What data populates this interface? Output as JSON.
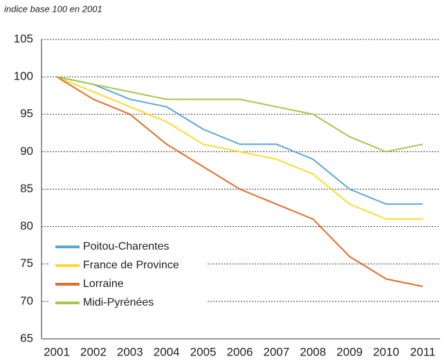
{
  "chart_data": {
    "type": "line",
    "subtitle": "indice base 100 en 2001",
    "categories": [
      "2001",
      "2002",
      "2003",
      "2004",
      "2005",
      "2006",
      "2007",
      "2008",
      "2009",
      "2010",
      "2011"
    ],
    "series": [
      {
        "name": "Poitou-Charentes",
        "color": "#5aa6dc",
        "values": [
          100,
          99,
          97,
          96,
          93,
          91,
          91,
          89,
          85,
          83,
          83
        ]
      },
      {
        "name": "France de Province",
        "color": "#ffd92f",
        "values": [
          100,
          98,
          96,
          94,
          91,
          90,
          89,
          87,
          83,
          81,
          81
        ]
      },
      {
        "name": "Lorraine",
        "color": "#e36c2a",
        "values": [
          100,
          97,
          95,
          91,
          88,
          85,
          83,
          81,
          76,
          73,
          72
        ]
      },
      {
        "name": "Midi-Pyrénées",
        "color": "#a5c84a",
        "values": [
          100,
          99,
          98,
          97,
          97,
          97,
          96,
          95,
          92,
          90,
          91
        ]
      }
    ],
    "ylim": [
      65,
      105
    ],
    "yticks": [
      65,
      70,
      75,
      80,
      85,
      90,
      95,
      100,
      105
    ],
    "grid": true,
    "legend": "lower left"
  }
}
